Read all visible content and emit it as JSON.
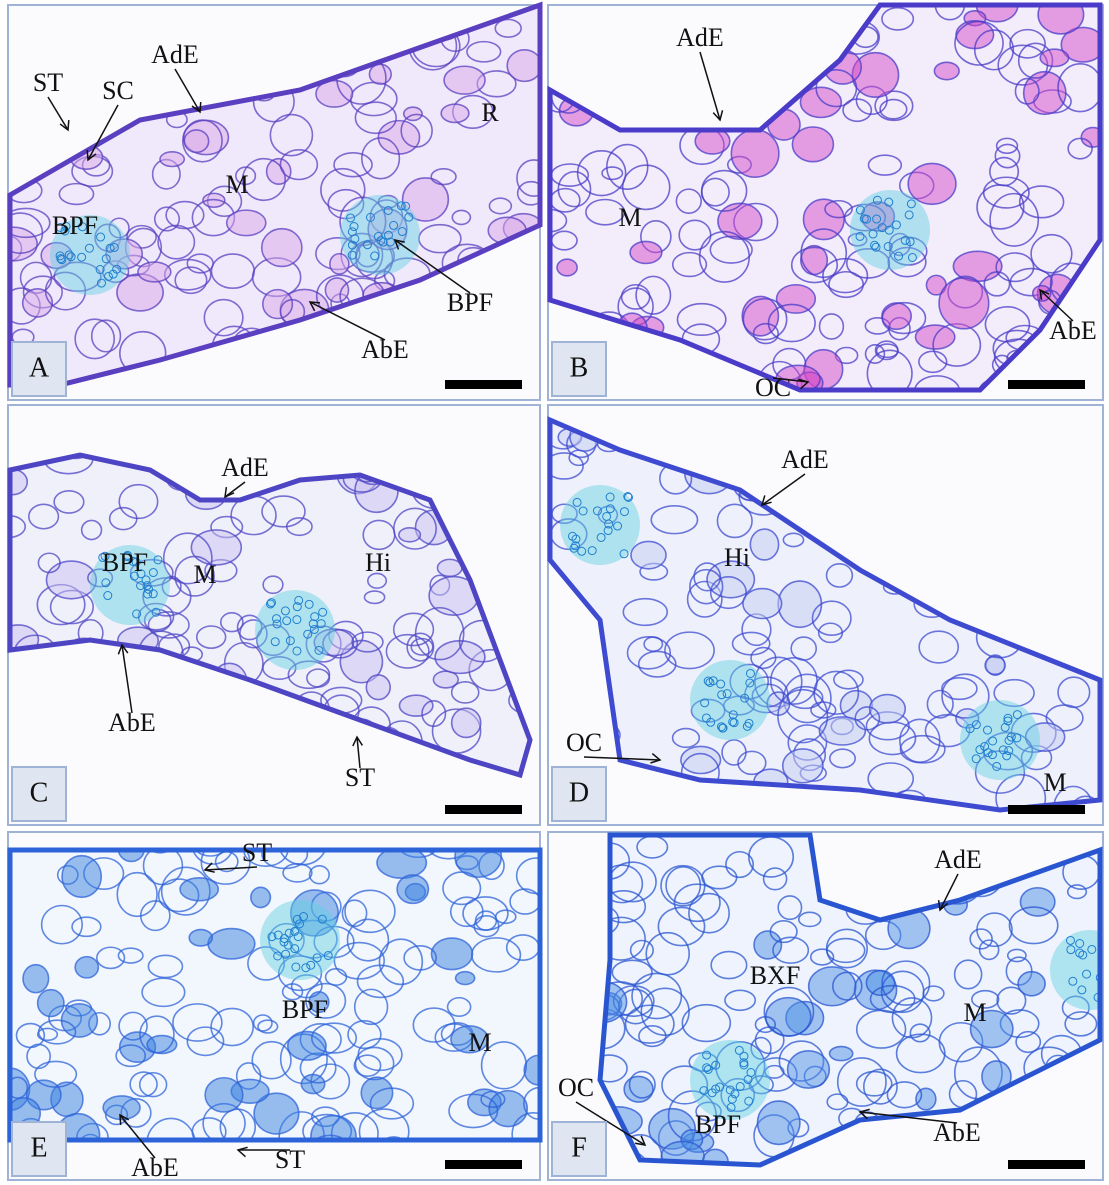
{
  "panels": [
    {
      "letter": "A",
      "labels": [
        "ST",
        "SC",
        "AdE",
        "R",
        "M",
        "BPF",
        "BPF",
        "AbE"
      ]
    },
    {
      "letter": "B",
      "labels": [
        "AdE",
        "M",
        "AbE",
        "OC"
      ]
    },
    {
      "letter": "C",
      "labels": [
        "AdE",
        "BPF",
        "M",
        "Hi",
        "AbE",
        "ST"
      ]
    },
    {
      "letter": "D",
      "labels": [
        "AdE",
        "Hi",
        "OC",
        "M"
      ]
    },
    {
      "letter": "E",
      "labels": [
        "ST",
        "BPF",
        "M",
        "AbE",
        "ST"
      ]
    },
    {
      "letter": "F",
      "labels": [
        "AdE",
        "BXF",
        "M",
        "OC",
        "BPF",
        "AbE"
      ]
    }
  ]
}
